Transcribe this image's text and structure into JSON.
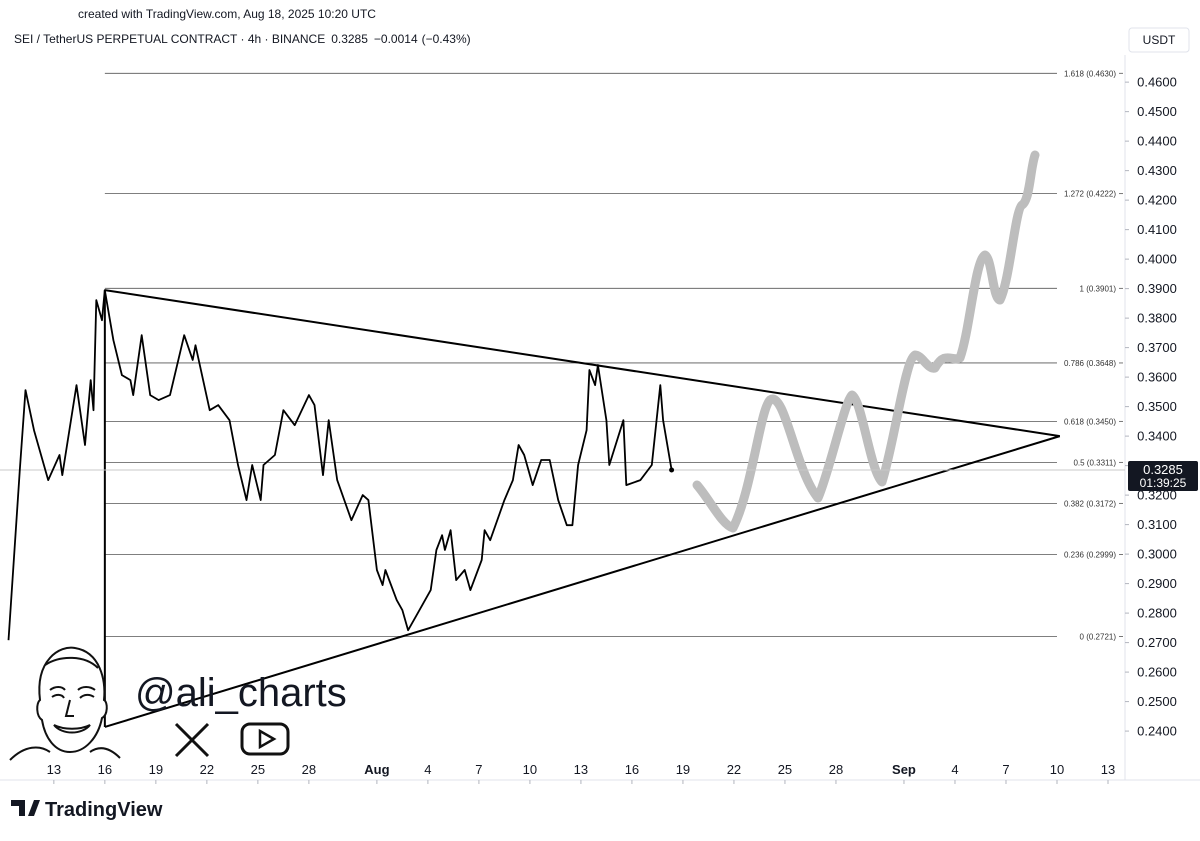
{
  "created": "created with TradingView.com, Aug 18, 2025 10:20 UTC",
  "brand": "TradingView",
  "watermark": "@ali_charts",
  "chart_data": {
    "type": "line",
    "title": "SEI / TetherUS PERPETUAL CONTRACT · 4h · BINANCE",
    "last": 0.3285,
    "change": "−0.0014",
    "change_pct": "(−0.43%)",
    "countdown": "01:39:25",
    "currency": "USDT",
    "color": "#000000",
    "x": [
      "2025-07-10T08:00",
      "2025-07-11T00:00",
      "2025-07-11T08:00",
      "2025-07-11T20:00",
      "2025-07-12T16:00",
      "2025-07-13T08:00",
      "2025-07-13T12:00",
      "2025-07-14T08:00",
      "2025-07-14T20:00",
      "2025-07-15T04:00",
      "2025-07-15T08:00",
      "2025-07-15T12:00",
      "2025-07-15T20:00",
      "2025-07-16T00:00",
      "2025-07-16T12:00",
      "2025-07-17T00:00",
      "2025-07-17T12:00",
      "2025-07-17T16:00",
      "2025-07-18T04:00",
      "2025-07-18T16:00",
      "2025-07-19T04:00",
      "2025-07-19T20:00",
      "2025-07-20T16:00",
      "2025-07-21T04:00",
      "2025-07-21T08:00",
      "2025-07-22T04:00",
      "2025-07-22T16:00",
      "2025-07-23T08:00",
      "2025-07-23T20:00",
      "2025-07-24T08:00",
      "2025-07-24T16:00",
      "2025-07-25T04:00",
      "2025-07-25T08:00",
      "2025-07-26T00:00",
      "2025-07-26T12:00",
      "2025-07-27T04:00",
      "2025-07-28T00:00",
      "2025-07-28T08:00",
      "2025-07-28T20:00",
      "2025-07-29T04:00",
      "2025-07-29T16:00",
      "2025-07-30T12:00",
      "2025-07-31T04:00",
      "2025-07-31T12:00",
      "2025-08-01T00:00",
      "2025-08-01T08:00",
      "2025-08-01T12:00",
      "2025-08-02T04:00",
      "2025-08-02T12:00",
      "2025-08-02T20:00",
      "2025-08-03T08:00",
      "2025-08-04T04:00",
      "2025-08-04T12:00",
      "2025-08-04T20:00",
      "2025-08-05T00:00",
      "2025-08-05T08:00",
      "2025-08-05T16:00",
      "2025-08-06T04:00",
      "2025-08-06T12:00",
      "2025-08-07T04:00",
      "2025-08-07T08:00",
      "2025-08-07T16:00",
      "2025-08-08T12:00",
      "2025-08-09T00:00",
      "2025-08-09T08:00",
      "2025-08-09T16:00",
      "2025-08-10T04:00",
      "2025-08-10T16:00",
      "2025-08-11T04:00",
      "2025-08-11T16:00",
      "2025-08-12T04:00",
      "2025-08-12T12:00",
      "2025-08-12T20:00",
      "2025-08-13T08:00",
      "2025-08-13T12:00",
      "2025-08-13T20:00",
      "2025-08-14T00:00",
      "2025-08-14T12:00",
      "2025-08-14T16:00",
      "2025-08-15T12:00",
      "2025-08-15T16:00",
      "2025-08-16T12:00",
      "2025-08-17T04:00",
      "2025-08-17T16:00",
      "2025-08-17T20:00",
      "2025-08-18T08:00"
    ],
    "values": [
      0.2708,
      0.3285,
      0.3556,
      0.342,
      0.3251,
      0.3336,
      0.3268,
      0.3573,
      0.337,
      0.359,
      0.3488,
      0.3861,
      0.3793,
      0.3895,
      0.3725,
      0.3607,
      0.359,
      0.3539,
      0.3742,
      0.3539,
      0.3522,
      0.3539,
      0.3742,
      0.3658,
      0.3708,
      0.3488,
      0.3505,
      0.3454,
      0.3302,
      0.3183,
      0.3302,
      0.3183,
      0.3302,
      0.3336,
      0.3488,
      0.3437,
      0.3539,
      0.3505,
      0.3268,
      0.3454,
      0.3251,
      0.3115,
      0.32,
      0.3183,
      0.2946,
      0.2895,
      0.2946,
      0.2844,
      0.281,
      0.2742,
      0.2793,
      0.2878,
      0.3014,
      0.3064,
      0.3014,
      0.3081,
      0.2912,
      0.2946,
      0.2878,
      0.298,
      0.3081,
      0.3047,
      0.3183,
      0.3251,
      0.337,
      0.3336,
      0.3234,
      0.3319,
      0.3319,
      0.3183,
      0.3098,
      0.3098,
      0.3302,
      0.342,
      0.3624,
      0.3573,
      0.3641,
      0.3454,
      0.3302,
      0.3454,
      0.3234,
      0.3251,
      0.3302,
      0.3573,
      0.3454,
      0.3285
    ],
    "xlim": [
      "2025-07-09T20:00",
      "2025-09-14T00:00"
    ],
    "xticks": [
      {
        "value": "2025-07-13",
        "label": "13"
      },
      {
        "value": "2025-07-16",
        "label": "16"
      },
      {
        "value": "2025-07-19",
        "label": "19"
      },
      {
        "value": "2025-07-22",
        "label": "22"
      },
      {
        "value": "2025-07-25",
        "label": "25"
      },
      {
        "value": "2025-07-28",
        "label": "28"
      },
      {
        "value": "2025-08-01",
        "label": "Aug"
      },
      {
        "value": "2025-08-04",
        "label": "4"
      },
      {
        "value": "2025-08-07",
        "label": "7"
      },
      {
        "value": "2025-08-10",
        "label": "10"
      },
      {
        "value": "2025-08-13",
        "label": "13"
      },
      {
        "value": "2025-08-16",
        "label": "16"
      },
      {
        "value": "2025-08-19",
        "label": "19"
      },
      {
        "value": "2025-08-22",
        "label": "22"
      },
      {
        "value": "2025-08-25",
        "label": "25"
      },
      {
        "value": "2025-08-28",
        "label": "28"
      },
      {
        "value": "2025-09-01",
        "label": "Sep"
      },
      {
        "value": "2025-09-04",
        "label": "4"
      },
      {
        "value": "2025-09-07",
        "label": "7"
      },
      {
        "value": "2025-09-10",
        "label": "10"
      },
      {
        "value": "2025-09-13",
        "label": "13"
      }
    ],
    "ylim": [
      0.2302,
      0.4692
    ],
    "yticks": [
      {
        "value": 0.24,
        "label": "0.2400"
      },
      {
        "value": 0.25,
        "label": "0.2500"
      },
      {
        "value": 0.26,
        "label": "0.2600"
      },
      {
        "value": 0.27,
        "label": "0.2700"
      },
      {
        "value": 0.28,
        "label": "0.2800"
      },
      {
        "value": 0.29,
        "label": "0.2900"
      },
      {
        "value": 0.3,
        "label": "0.3000"
      },
      {
        "value": 0.31,
        "label": "0.3100"
      },
      {
        "value": 0.32,
        "label": "0.3200"
      },
      {
        "value": 0.33,
        "label": "0.3300"
      },
      {
        "value": 0.34,
        "label": "0.3400"
      },
      {
        "value": 0.35,
        "label": "0.3500"
      },
      {
        "value": 0.36,
        "label": "0.3600"
      },
      {
        "value": 0.37,
        "label": "0.3700"
      },
      {
        "value": 0.38,
        "label": "0.3800"
      },
      {
        "value": 0.39,
        "label": "0.3900"
      },
      {
        "value": 0.4,
        "label": "0.4000"
      },
      {
        "value": 0.41,
        "label": "0.4100"
      },
      {
        "value": 0.42,
        "label": "0.4200"
      },
      {
        "value": 0.43,
        "label": "0.4300"
      },
      {
        "value": 0.44,
        "label": "0.4400"
      },
      {
        "value": 0.45,
        "label": "0.4500"
      },
      {
        "value": 0.46,
        "label": "0.4600"
      }
    ],
    "fib_levels": [
      {
        "value": 0.463,
        "label": "1.618 (0.4630)"
      },
      {
        "value": 0.4222,
        "label": "1.272 (0.4222)"
      },
      {
        "value": 0.3901,
        "label": "1 (0.3901)"
      },
      {
        "value": 0.3648,
        "label": "0.786 (0.3648)"
      },
      {
        "value": 0.345,
        "label": "0.618 (0.3450)"
      },
      {
        "value": 0.3311,
        "label": "0.5 (0.3311)"
      },
      {
        "value": 0.3172,
        "label": "0.382 (0.3172)"
      },
      {
        "value": 0.2999,
        "label": "0.236 (0.2999)"
      },
      {
        "value": 0.2721,
        "label": "0 (0.2721)"
      }
    ],
    "fib_start": "2025-07-16T00:00",
    "fib_end": "2025-09-10T00:00",
    "trendlines": [
      [
        [
          "2025-07-16T00:00",
          0.3895
        ],
        [
          "2025-09-10T04:00",
          0.34
        ]
      ],
      [
        [
          "2025-07-16T00:00",
          0.2414
        ],
        [
          "2025-09-10T04:00",
          0.34
        ]
      ],
      [
        [
          "2025-07-16T00:00",
          0.3895
        ],
        [
          "2025-07-16T00:00",
          0.2414
        ]
      ]
    ]
  }
}
